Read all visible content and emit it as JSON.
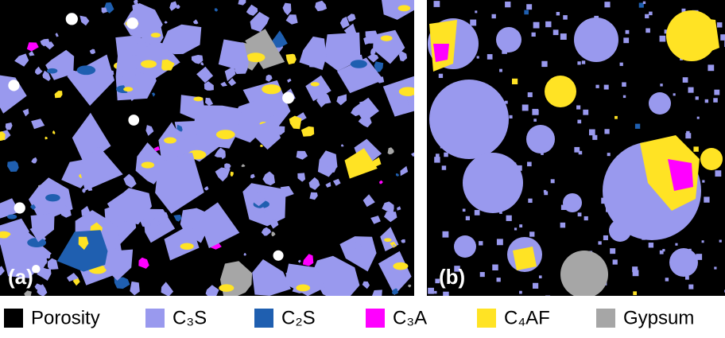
{
  "panels": [
    {
      "label": "(a)"
    },
    {
      "label": "(b)"
    }
  ],
  "legend": [
    {
      "label": "Porosity",
      "color": "#000000"
    },
    {
      "label": "C₃S",
      "color": "#9999ee"
    },
    {
      "label": "C₂S",
      "color": "#1f5fb0"
    },
    {
      "label": "C₃A",
      "color": "#ff00ff"
    },
    {
      "label": "C₄AF",
      "color": "#ffe324"
    },
    {
      "label": "Gypsum",
      "color": "#a6a6a6"
    }
  ]
}
